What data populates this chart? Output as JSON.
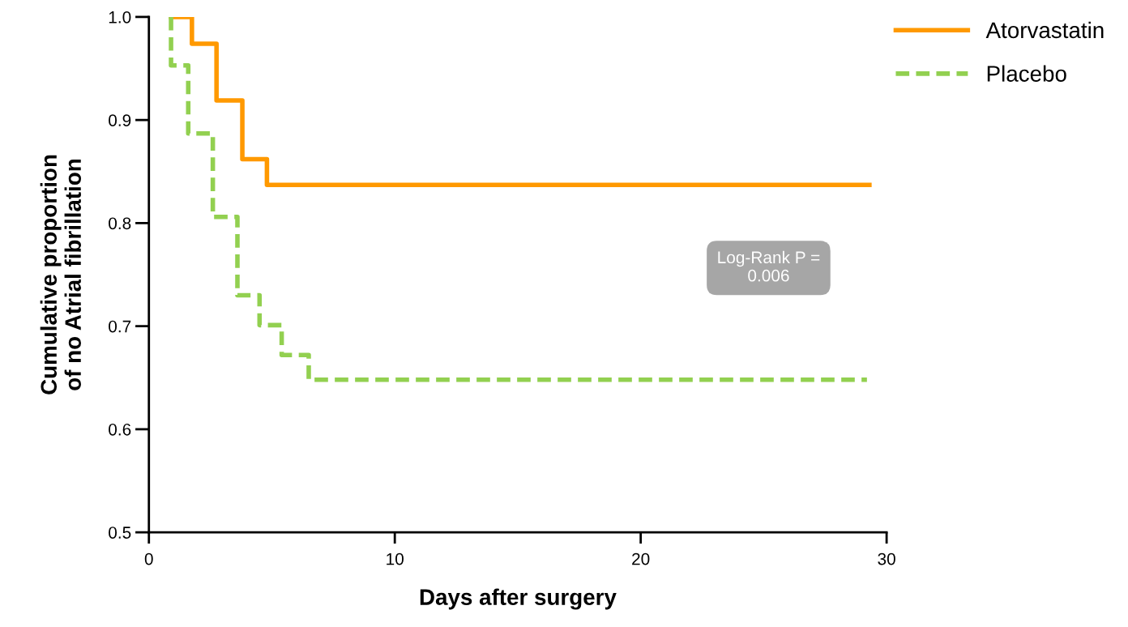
{
  "chart_data": {
    "type": "step",
    "xlabel": "Days after surgery",
    "ylabel": "Cumulative proportion\nof no Atrial fibrillation",
    "series": [
      {
        "name": "Atorvastatin",
        "color": "#ff9900",
        "line_style": "solid",
        "x": [
          0.9,
          1.75,
          2.75,
          3.8,
          4.8,
          29.3
        ],
        "values": [
          1.0,
          0.974,
          0.919,
          0.862,
          0.837,
          0.837
        ]
      },
      {
        "name": "Placebo",
        "color": "#92d050",
        "line_style": "dashed",
        "x": [
          0.9,
          0.9,
          1.6,
          2.6,
          3.6,
          4.5,
          5.4,
          6.5,
          29.2
        ],
        "values": [
          1.0,
          0.953,
          0.887,
          0.806,
          0.73,
          0.701,
          0.672,
          0.648,
          0.648
        ]
      }
    ],
    "xlim": [
      0,
      30
    ],
    "xticks": [
      0,
      10,
      20,
      30
    ],
    "ylim": [
      0.5,
      1.0
    ],
    "yticks": [
      0.5,
      0.6,
      0.7,
      0.8,
      0.9,
      {
        "value": 1.0,
        "label": "1.0"
      }
    ],
    "annotations": [
      "Log-Rank P =\n0.006"
    ],
    "legend": "top right",
    "grid": false
  }
}
